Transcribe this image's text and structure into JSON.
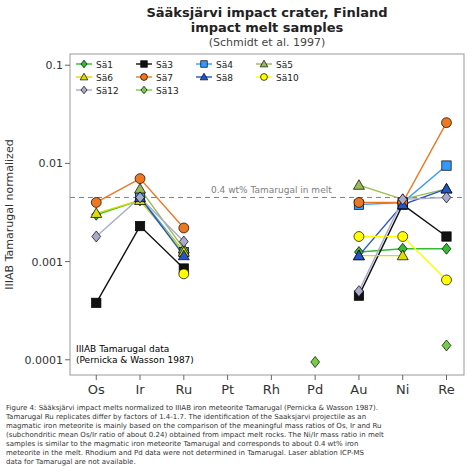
{
  "chart_data": {
    "type": "line",
    "title": "Sääksjärvi impact crater, Finland\nimpact melt samples",
    "subtitle": "(Schmidt et al. 1997)",
    "y_label": "IIIAB Tamarugal normalized",
    "categories": [
      "Os",
      "Ir",
      "Ru",
      "Pt",
      "Rh",
      "Pd",
      "Au",
      "Ni",
      "Re"
    ],
    "log": "y",
    "ylim": [
      7e-05,
      0.13
    ],
    "yticks": [
      0.0001,
      0.001,
      0.01,
      0.1
    ],
    "grid": false,
    "legend": "upper left",
    "reference_line": {
      "value": 0.0045,
      "label": "0.4 wt% Tamarugal in melt"
    },
    "annotations": [
      "IIIAB Tamarugal data\n(Pernicka & Wasson 1987)"
    ],
    "caption": "Figure 4: Sääksjärvi impact melts normalized to IIIAB iron meteorite Tamarugal (Pernicka & Wasson 1987).\nTamarugal Ru replicates differ by factors of 1.4-1.7. The identification of the Saaksjarvi projectile as an\nmagmatic iron meteorite is mainly based on the comparison of the meaningful mass ratios of Os, Ir and Ru\n(subchondritic mean Os/Ir ratio of about 0.24) obtained from impact melt rocks. The Ni/Ir mass ratio in melt\nsamples is similar to the magmatic iron meteorite Tamarugal and corresponds to about 0.4 wt% iron\nmeteorite in the melt. Rhodium and Pd data were not determined in Tamarugal. Laser ablation ICP-MS\ndata for Tamarugal are not available.",
    "series": [
      {
        "name": "Sä1",
        "color": "#33bb33",
        "marker": "diamond",
        "values": [
          0.003,
          0.0042,
          0.00125,
          null,
          null,
          null,
          0.00125,
          0.00135,
          0.00135
        ]
      },
      {
        "name": "Sä3",
        "color": "#111111",
        "marker": "square",
        "values": [
          0.00038,
          0.0023,
          0.00085,
          null,
          null,
          null,
          0.00045,
          0.0038,
          0.0018
        ]
      },
      {
        "name": "Sä4",
        "color": "#3399ff",
        "marker": "square",
        "values": [
          null,
          0.0045,
          0.00125,
          null,
          null,
          null,
          0.0038,
          0.004,
          0.0095
        ]
      },
      {
        "name": "Sä5",
        "color": "#99bb55",
        "marker": "triangle",
        "values": [
          null,
          0.0055,
          0.00135,
          null,
          null,
          null,
          0.006,
          0.0043,
          0.0055
        ]
      },
      {
        "name": "Sä6",
        "color": "#dddd00",
        "marker": "triangle",
        "values": [
          0.0031,
          0.0042,
          0.00125,
          null,
          null,
          null,
          0.00115,
          0.00115,
          null
        ]
      },
      {
        "name": "Sä7",
        "color": "#ee7722",
        "marker": "circle",
        "values": [
          0.004,
          0.007,
          0.0022,
          null,
          null,
          null,
          0.004,
          0.004,
          0.026
        ]
      },
      {
        "name": "Sä8",
        "color": "#2255cc",
        "marker": "triangle",
        "values": [
          null,
          0.0045,
          0.00115,
          null,
          null,
          null,
          0.00115,
          0.0038,
          0.0055
        ]
      },
      {
        "name": "Sä10",
        "color": "#ffff00",
        "marker": "circle",
        "values": [
          null,
          null,
          0.00075,
          null,
          null,
          null,
          0.0018,
          0.0018,
          0.00065
        ]
      },
      {
        "name": "Sä12",
        "color": "#aaaacc",
        "marker": "diamond",
        "values": [
          0.0018,
          0.0045,
          0.0016,
          null,
          null,
          null,
          0.0005,
          0.0043,
          0.0045
        ]
      },
      {
        "name": "Sä13",
        "color": "#77cc44",
        "marker": "diamond",
        "values": [
          null,
          null,
          null,
          null,
          null,
          9.5e-05,
          null,
          null,
          0.00014
        ]
      }
    ]
  }
}
